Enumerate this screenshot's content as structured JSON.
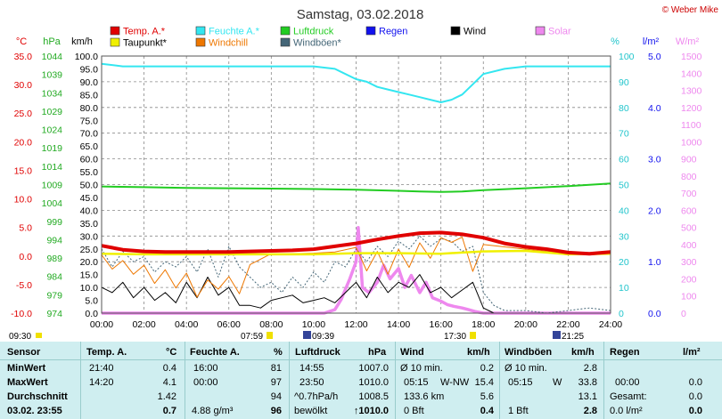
{
  "chart_data": {
    "type": "line",
    "title": "Samstag, 03.02.2018",
    "copyright": "© Weber Mike",
    "axes_labels": {
      "temp": "°C",
      "hpa": "hPa",
      "kmh": "km/h",
      "pct": "%",
      "rain": "l/m²",
      "solar": "W/m²"
    },
    "x_ticks": [
      "00:00",
      "02:00",
      "04:00",
      "06:00",
      "08:00",
      "10:00",
      "12:00",
      "14:00",
      "16:00",
      "18:00",
      "20:00",
      "22:00",
      "24:00"
    ],
    "temp_axis": {
      "range": [
        -10,
        35
      ],
      "ticks": [
        "35.0",
        "30.0",
        "25.0",
        "20.0",
        "15.0",
        "10.0",
        "5.0",
        "0.0",
        "-5.0",
        "-10.0"
      ]
    },
    "hpa_axis": {
      "range": [
        974,
        1044
      ],
      "ticks": [
        "1044",
        "1039",
        "1034",
        "1029",
        "1024",
        "1019",
        "1014",
        "1009",
        "1004",
        "999",
        "994",
        "989",
        "984",
        "979",
        "974"
      ]
    },
    "kmh_axis": {
      "range": [
        0,
        100
      ],
      "ticks": [
        "100.0",
        "95.0",
        "90.0",
        "85.0",
        "80.0",
        "75.0",
        "70.0",
        "65.0",
        "60.0",
        "55.0",
        "50.0",
        "45.0",
        "40.0",
        "35.0",
        "30.0",
        "25.0",
        "20.0",
        "15.0",
        "10.0",
        "5.0",
        "0.0"
      ]
    },
    "pct_axis": {
      "range": [
        0,
        100
      ],
      "ticks": [
        "100",
        "90",
        "80",
        "70",
        "60",
        "50",
        "40",
        "30",
        "20",
        "10",
        "0"
      ]
    },
    "rain_axis": {
      "range": [
        0,
        5
      ],
      "ticks": [
        "5.0",
        "4.0",
        "3.0",
        "2.0",
        "1.0",
        "0.0"
      ]
    },
    "solar_axis": {
      "range": [
        0,
        1500
      ],
      "ticks": [
        "1500",
        "1400",
        "1300",
        "1200",
        "1100",
        "1000",
        "900",
        "800",
        "700",
        "600",
        "500",
        "400",
        "300",
        "200",
        "100",
        "0"
      ]
    },
    "legend": [
      {
        "name": "Temp. A.*",
        "color": "#e00000"
      },
      {
        "name": "Feuchte A.*",
        "color": "#33e6f0"
      },
      {
        "name": "Luftdruck",
        "color": "#22cc22"
      },
      {
        "name": "Regen",
        "color": "#1111ee"
      },
      {
        "name": "Wind",
        "color": "#000000"
      },
      {
        "name": "Solar",
        "color": "#ee88ee"
      },
      {
        "name": "Taupunkt*",
        "color": "#f0f000"
      },
      {
        "name": "Windchill",
        "color": "#ee7700"
      },
      {
        "name": "Windböen*",
        "color": "#446677"
      }
    ],
    "series": [
      {
        "name": "Temp. A.*",
        "axis": "temp",
        "x": [
          0,
          1,
          2,
          3,
          4,
          5,
          6,
          7,
          8,
          9,
          10,
          11,
          12,
          13,
          14,
          15,
          16,
          17,
          18,
          19,
          20,
          21,
          22,
          23,
          24
        ],
        "y": [
          1.8,
          1.1,
          0.8,
          0.7,
          0.7,
          0.7,
          0.7,
          0.8,
          0.9,
          1.0,
          1.2,
          1.7,
          2.2,
          2.9,
          3.5,
          4.0,
          4.1,
          3.8,
          3.2,
          2.2,
          1.6,
          1.2,
          0.6,
          0.4,
          0.7
        ]
      },
      {
        "name": "Taupunkt*",
        "axis": "temp",
        "x": [
          0,
          2,
          4,
          6,
          8,
          10,
          12,
          14,
          16,
          17,
          18,
          20,
          22,
          24
        ],
        "y": [
          0.4,
          0.3,
          0.3,
          0.3,
          0.3,
          0.3,
          0.5,
          0.5,
          0.4,
          0.6,
          0.8,
          0.9,
          0.3,
          0.4
        ]
      },
      {
        "name": "Windchill",
        "axis": "temp",
        "x": [
          0,
          0.5,
          1,
          1.5,
          2,
          2.5,
          3,
          3.5,
          4,
          4.5,
          5,
          5.5,
          6,
          6.5,
          7,
          8,
          9,
          10,
          11,
          12,
          12.5,
          13,
          13.5,
          14,
          14.5,
          15,
          15.5,
          16,
          16.5,
          17,
          17.5,
          18,
          19,
          20,
          21,
          22,
          23,
          24
        ],
        "y": [
          0.2,
          -2.3,
          -0.8,
          -3.2,
          -1.6,
          -4.8,
          -2.4,
          -5.6,
          -3.0,
          -7.2,
          -4.2,
          -5.8,
          -3.6,
          -6.6,
          -1.5,
          0.4,
          0.4,
          0.5,
          0.7,
          1.5,
          -2.6,
          0.8,
          -3.2,
          1.2,
          -2.0,
          2.3,
          -0.4,
          3.2,
          2.4,
          3.3,
          -2.7,
          2.0,
          1.6,
          1.2,
          0.8,
          0.5,
          0.4,
          0.7
        ]
      },
      {
        "name": "Luftdruck",
        "axis": "hpa",
        "x": [
          0,
          2,
          4,
          6,
          8,
          10,
          12,
          14,
          15,
          16,
          17,
          18,
          20,
          22,
          24
        ],
        "y": [
          1008.5,
          1008.3,
          1008.1,
          1008.0,
          1007.9,
          1007.8,
          1007.6,
          1007.3,
          1007.1,
          1007.0,
          1007.1,
          1007.5,
          1008.0,
          1008.6,
          1009.3
        ]
      },
      {
        "name": "Feuchte A.*",
        "axis": "pct",
        "x": [
          0,
          1,
          2,
          4,
          6,
          8,
          10,
          11,
          12,
          12.5,
          13,
          13.5,
          14,
          14.5,
          15,
          15.5,
          16,
          16.5,
          17,
          17.5,
          18,
          19,
          20,
          22,
          24
        ],
        "y": [
          97,
          96,
          96,
          96,
          96,
          96,
          96,
          95,
          91,
          90,
          88,
          87,
          86,
          85,
          84,
          83,
          82,
          83,
          85,
          89,
          93,
          95,
          96,
          96,
          96
        ]
      },
      {
        "name": "Windböen*",
        "axis": "kmh",
        "x": [
          0,
          0.5,
          1,
          1.5,
          2,
          2.5,
          3,
          3.5,
          4,
          4.5,
          5,
          5.5,
          6,
          6.5,
          7,
          7.5,
          8,
          8.5,
          9,
          9.5,
          10,
          10.5,
          11,
          11.5,
          12,
          12.5,
          13,
          13.5,
          14,
          14.5,
          15,
          15.5,
          16,
          16.5,
          17,
          17.5,
          18,
          18.5,
          19,
          20,
          21,
          22,
          23,
          24
        ],
        "y": [
          25,
          18,
          24,
          20,
          22,
          16,
          20,
          18,
          22,
          16,
          25,
          14,
          26,
          18,
          14,
          10,
          12,
          8,
          14,
          10,
          16,
          12,
          20,
          18,
          25,
          20,
          26,
          22,
          28,
          25,
          30,
          26,
          29,
          28,
          24,
          26,
          8,
          3,
          1,
          1,
          0,
          1,
          2,
          1
        ]
      },
      {
        "name": "Wind",
        "axis": "kmh",
        "x": [
          0,
          0.5,
          1,
          1.5,
          2,
          2.5,
          3,
          3.5,
          4,
          4.5,
          5,
          5.5,
          6,
          6.5,
          7,
          7.5,
          8,
          8.5,
          9,
          9.5,
          10,
          10.5,
          11,
          11.5,
          12,
          12.5,
          13,
          13.5,
          14,
          14.5,
          15,
          15.5,
          16,
          16.5,
          17,
          17.5,
          18,
          18.5,
          19,
          20,
          22,
          24
        ],
        "y": [
          10,
          8,
          12,
          6,
          10,
          5,
          8,
          4,
          12,
          6,
          14,
          7,
          10,
          3,
          3,
          2,
          5,
          6,
          7,
          4,
          5,
          6,
          4,
          8,
          12,
          6,
          14,
          8,
          12,
          10,
          15,
          8,
          10,
          6,
          9,
          12,
          2,
          0,
          0,
          0,
          0,
          0
        ]
      },
      {
        "name": "Solar",
        "axis": "solar",
        "x": [
          0,
          9.5,
          10,
          10.5,
          11,
          11.3,
          11.7,
          12,
          12.1,
          12.3,
          12.6,
          13,
          13.3,
          13.6,
          14,
          14.3,
          14.6,
          15,
          15.3,
          15.6,
          16,
          16.3,
          16.6,
          17,
          17.3,
          17.6,
          18,
          24
        ],
        "y": [
          0,
          0,
          0,
          0,
          20,
          80,
          200,
          300,
          500,
          150,
          120,
          180,
          280,
          200,
          260,
          150,
          220,
          120,
          180,
          90,
          70,
          50,
          40,
          30,
          20,
          10,
          0,
          0
        ]
      }
    ],
    "time_markers": {
      "left": "09:30",
      "sunrise": "07:59",
      "mid": "09:39",
      "noon": "17:30",
      "sunset": "21:25"
    }
  },
  "table": {
    "headers": {
      "sensor": "Sensor",
      "temp": "Temp. A.",
      "temp_unit": "°C",
      "hum": "Feuchte A.",
      "hum_unit": "%",
      "press": "Luftdruck",
      "press_unit": "hPa",
      "wind": "Wind",
      "wind_unit": "km/h",
      "gust": "Windböen",
      "gust_unit": "km/h",
      "rain": "Regen",
      "rain_unit": "l/m²"
    },
    "min": {
      "label": "MinWert",
      "temp_time": "21:40",
      "temp_val": "0.4",
      "hum_time": "16:00",
      "hum_val": "81",
      "press_time": "14:55",
      "press_val": "1007.0",
      "wind_lbl": "Ø 10 min.",
      "wind_val": "0.2",
      "gust_lbl": "Ø 10 min.",
      "gust_val": "2.8"
    },
    "max": {
      "label": "MaxWert",
      "temp_time": "14:20",
      "temp_val": "4.1",
      "hum_time": "00:00",
      "hum_val": "97",
      "press_time": "23:50",
      "press_val": "1010.0",
      "wind_time": "05:15",
      "wind_dir": "W-NW",
      "wind_val": "15.4",
      "gust_time": "05:15",
      "gust_dir": "W",
      "gust_val": "33.8",
      "rain_time": "00:00",
      "rain_val": "0.0"
    },
    "avg": {
      "label": "Durchschnitt",
      "temp_val": "1.42",
      "hum_val": "94",
      "press_trend": "^0.7hPa/h",
      "press_val": "1008.5",
      "wind_km": "133.6 km",
      "wind_val": "5.6",
      "gust_val": "13.1",
      "rain_lbl": "Gesamt:",
      "rain_val": "0.0"
    },
    "now": {
      "label": "03.02. 23:55",
      "temp_val": "0.7",
      "hum_abs": "4.88 g/m³",
      "hum_val": "96",
      "press_lbl": "bewölkt",
      "press_val": "↑1010.0",
      "wind_bft": "0 Bft",
      "wind_val": "0.4",
      "gust_bft": "1 Bft",
      "gust_val": "2.8",
      "rain_lbl": "0.0 l/m²",
      "rain_val": "0.0"
    }
  }
}
